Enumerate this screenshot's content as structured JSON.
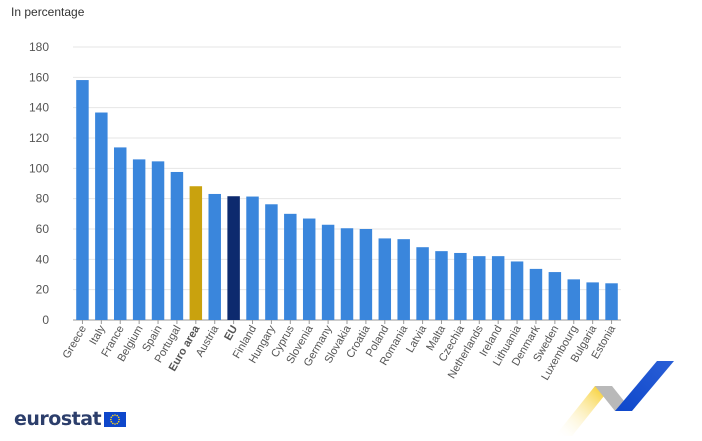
{
  "unit_label": "In percentage",
  "logo_text": "eurostat",
  "colors": {
    "default": "#3a86dc",
    "euro_area": "#c9a20e",
    "eu": "#0d2a6e",
    "grid": "#e6e6e6",
    "axis_text": "#555555"
  },
  "chart_data": {
    "type": "bar",
    "title": "",
    "xlabel": "",
    "ylabel": "In percentage",
    "ylim": [
      0,
      180
    ],
    "yticks": [
      0,
      20,
      40,
      60,
      80,
      100,
      120,
      140,
      160,
      180
    ],
    "grid": true,
    "categories": [
      "Greece",
      "Italy",
      "France",
      "Belgium",
      "Spain",
      "Portugal",
      "Euro area",
      "Austria",
      "EU",
      "Finland",
      "Hungary",
      "Cyprus",
      "Slovenia",
      "Germany",
      "Slovakia",
      "Croatia",
      "Poland",
      "Romania",
      "Latvia",
      "Malta",
      "Czechia",
      "Netherlands",
      "Ireland",
      "Lithuania",
      "Denmark",
      "Sweden",
      "Luxembourg",
      "Bulgaria",
      "Estonia"
    ],
    "values": [
      158.2,
      136.8,
      113.8,
      105.9,
      104.6,
      97.6,
      88.2,
      83.1,
      81.6,
      81.4,
      76.3,
      70.0,
      66.9,
      62.8,
      60.5,
      60.0,
      53.8,
      53.3,
      48.0,
      45.4,
      44.2,
      42.1,
      42.1,
      38.6,
      33.7,
      31.6,
      26.8,
      24.8,
      24.2
    ],
    "highlight": {
      "Euro area": "euro_area",
      "EU": "eu"
    },
    "bold_categories": [
      "Euro area",
      "EU"
    ]
  }
}
